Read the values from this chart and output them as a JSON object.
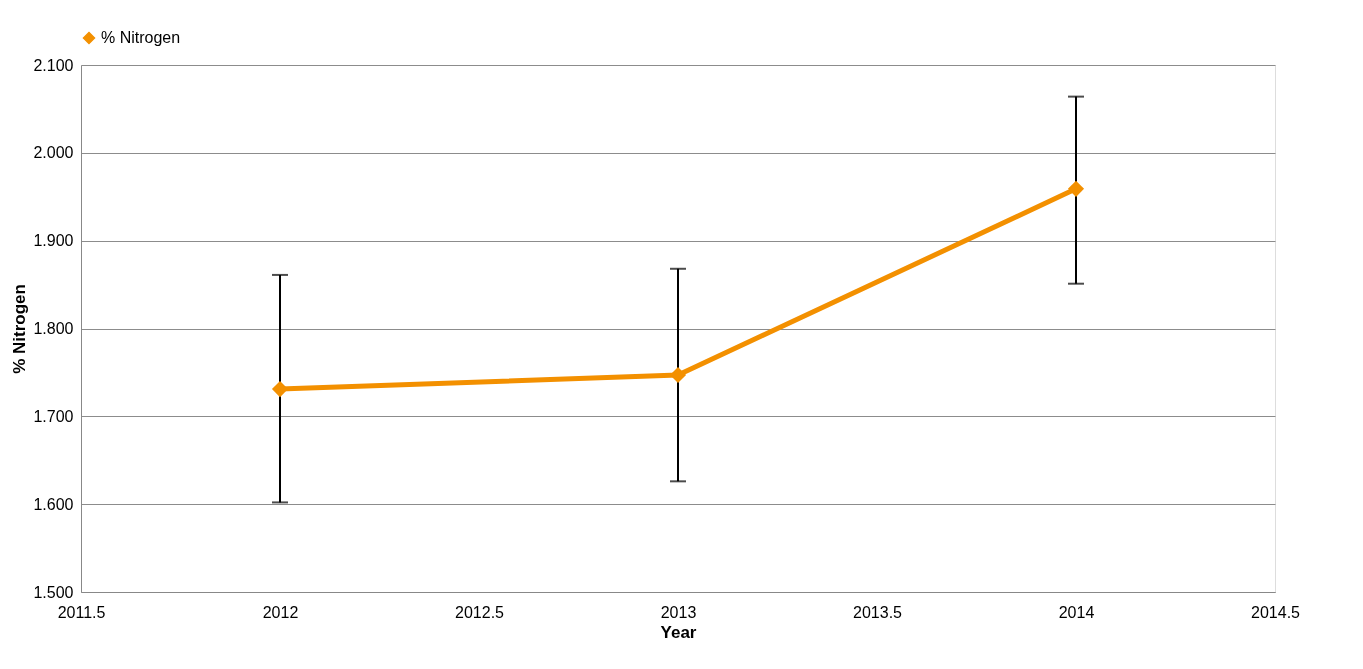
{
  "chart_data": {
    "type": "line",
    "xlabel": "Year",
    "ylabel": "% Nitrogen",
    "x": [
      2012,
      2013,
      2014
    ],
    "series": [
      {
        "name": "% Nitrogen",
        "color": "#f39000",
        "values": [
          1.731,
          1.747,
          1.959
        ],
        "errors": [
          [
            1.602,
            1.861
          ],
          [
            1.626,
            1.868
          ],
          [
            1.851,
            2.064
          ]
        ]
      }
    ],
    "xlim": [
      2011.5,
      2014.5
    ],
    "xticks": [
      2011.5,
      2012,
      2012.5,
      2013,
      2013.5,
      2014,
      2014.5
    ],
    "ylim": [
      1.5,
      2.1
    ],
    "yticks": [
      {
        "value": 1.5,
        "label": "1.500"
      },
      {
        "value": 1.6,
        "label": "1.600"
      },
      {
        "value": 1.7,
        "label": "1.700"
      },
      {
        "value": 1.8,
        "label": "1.800"
      },
      {
        "value": 1.9,
        "label": "1.900"
      },
      {
        "value": 2.0,
        "label": "2.000"
      },
      {
        "value": 2.1,
        "label": "2.100"
      }
    ],
    "grid": "y",
    "legend": "top",
    "marker": "diamond",
    "line_style": "solid"
  }
}
